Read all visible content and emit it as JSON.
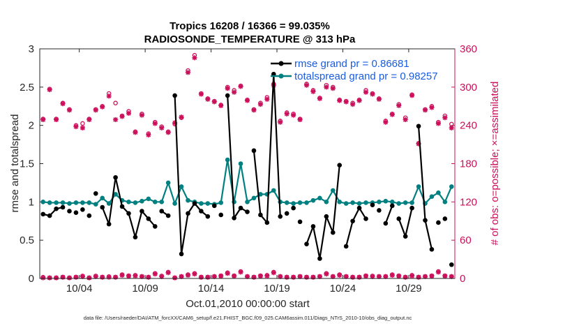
{
  "chart_data": {
    "type": "line",
    "title_line1": "Tropics 16208 / 16366 = 99.035%",
    "title_line2": "RADIOSONDE_TEMPERATURE @ 313 hPa",
    "ylabel_left": "rmse and totalspread",
    "ylabel_right": "# of obs: o=possible; ×=assimilated",
    "xlabel": "Oct.01,2010 00:00:00 start",
    "footer": "data file: /Users/raeder/DAI/ATM_forcXX/CAM6_setup/f.e21.FHIST_BGC.f09_025.CAM6assim.011/Diags_NTrS_2010-10/obs_diag_output.nc",
    "xlim": [
      1,
      32.5
    ],
    "ylim_left": [
      0,
      3
    ],
    "ylim_right": [
      0,
      360
    ],
    "x_ticks": [
      4,
      9,
      14,
      19,
      24,
      29
    ],
    "x_tick_labels": [
      "10/04",
      "10/09",
      "10/14",
      "10/19",
      "10/24",
      "10/29"
    ],
    "y_left_ticks": [
      0,
      0.5,
      1,
      1.5,
      2,
      2.5,
      3
    ],
    "y_left_tick_labels": [
      "0",
      "0.5",
      "1",
      "1.5",
      "2",
      "2.5",
      "3"
    ],
    "y_right_ticks": [
      0,
      60,
      120,
      180,
      240,
      300,
      360
    ],
    "y_right_tick_labels": [
      "0",
      "60",
      "120",
      "180",
      "240",
      "300",
      "360"
    ],
    "colors": {
      "rmse": "#000000",
      "totalspread": "#008080",
      "obs": "#cc0f5a",
      "legend_text": "#1a5ce0",
      "axis": "#262626"
    },
    "legend": {
      "location": "top-right",
      "entries": [
        "rmse grand pr = 0.86681",
        "totalspread grand pr = 0.98257"
      ]
    },
    "x": [
      1.25,
      1.75,
      2.25,
      2.75,
      3.25,
      3.75,
      4.25,
      4.75,
      5.25,
      5.75,
      6.25,
      6.75,
      7.25,
      7.75,
      8.25,
      8.75,
      9.25,
      9.75,
      10.25,
      10.75,
      11.25,
      11.75,
      12.25,
      12.75,
      13.25,
      13.75,
      14.25,
      14.75,
      15.25,
      15.75,
      16.25,
      16.75,
      17.25,
      17.75,
      18.25,
      18.75,
      19.25,
      19.75,
      20.25,
      20.75,
      21.25,
      21.75,
      22.25,
      22.75,
      23.25,
      23.75,
      24.25,
      24.75,
      25.25,
      25.75,
      26.25,
      26.75,
      27.25,
      27.75,
      28.25,
      28.75,
      29.25,
      29.75,
      30.25,
      30.75,
      31.25,
      31.75,
      32.25
    ],
    "series": [
      {
        "name": "rmse",
        "values": [
          0.84,
          0.82,
          0.91,
          0.93,
          0.88,
          0.86,
          0.9,
          0.82,
          1.11,
          0.93,
          0.71,
          1.32,
          0.94,
          0.85,
          0.54,
          0.88,
          0.78,
          0.68,
          0.88,
          0.82,
          2.39,
          0.32,
          0.85,
          0.98,
          0.88,
          0.81,
          0.95,
          0.83,
          2.39,
          0.79,
          0.92,
          0.87,
          1.67,
          0.83,
          0.73,
          2.67,
          0.81,
          0.85,
          0.92,
          0.74,
          0.45,
          0.68,
          0.26,
          0.81,
          0.6,
          1.48,
          0.42,
          0.75,
          0.92,
          0.78,
          0.96,
          0.89,
          0.72,
          0.95,
          0.78,
          0.55,
          0.92,
          1.99,
          0.76,
          0.38,
          0.73,
          0.78,
          0.18
        ],
        "gaps_after_index": [
          3,
          4,
          5,
          6,
          7,
          8,
          17,
          19,
          25,
          26,
          27,
          31,
          36,
          37,
          38,
          39,
          45,
          49,
          50,
          51,
          53,
          56,
          59,
          60,
          61
        ]
      },
      {
        "name": "totalspread",
        "values": [
          1.0,
          0.99,
          0.99,
          0.99,
          0.98,
          0.99,
          0.99,
          0.99,
          0.97,
          1.05,
          0.98,
          1.1,
          1.02,
          1.0,
          0.99,
          1.01,
          1.04,
          1.0,
          1.0,
          1.25,
          0.98,
          1.2,
          1.02,
          1.0,
          0.98,
          0.98,
          0.97,
          0.99,
          1.55,
          1.0,
          1.5,
          1.0,
          1.05,
          1.1,
          1.1,
          1.15,
          1.0,
          0.99,
          0.98,
          0.99,
          0.99,
          1.02,
          1.05,
          1.0,
          1.15,
          1.0,
          0.98,
          0.99,
          0.98,
          0.99,
          0.99,
          1.0,
          1.01,
          1.0,
          0.98,
          0.99,
          0.99,
          1.2,
          0.98,
          1.07,
          1.12,
          1.0,
          1.2
        ]
      },
      {
        "name": "obs_possible",
        "values": [
          250,
          297,
          250,
          275,
          265,
          240,
          243,
          250,
          265,
          270,
          290,
          275,
          255,
          262,
          230,
          258,
          227,
          245,
          238,
          230,
          242,
          252,
          326,
          350,
          290,
          282,
          278,
          272,
          300,
          295,
          302,
          280,
          265,
          275,
          284,
          305,
          247,
          260,
          258,
          250,
          305,
          295,
          283,
          303,
          300,
          280,
          278,
          275,
          280,
          295,
          290,
          282,
          247,
          258,
          273,
          252,
          288,
          212,
          265,
          270,
          245,
          255,
          242
        ]
      },
      {
        "name": "obs_assimilated",
        "values": [
          249,
          296,
          249,
          274,
          264,
          238,
          236,
          249,
          264,
          269,
          286,
          249,
          254,
          259,
          229,
          256,
          225,
          243,
          236,
          229,
          244,
          253,
          323,
          346,
          289,
          281,
          277,
          271,
          298,
          292,
          301,
          279,
          264,
          273,
          281,
          303,
          245,
          258,
          256,
          249,
          303,
          293,
          282,
          300,
          298,
          279,
          277,
          273,
          279,
          292,
          289,
          281,
          245,
          257,
          271,
          249,
          287,
          211,
          264,
          268,
          243,
          252,
          236
        ]
      }
    ],
    "obs_low_possible": [
      2,
      1,
      1,
      2,
      1,
      2,
      4,
      1,
      4,
      2,
      3,
      2,
      6,
      4,
      5,
      3,
      2,
      8,
      4,
      10,
      1,
      3,
      6,
      8,
      2,
      2,
      3,
      4,
      9,
      4,
      11,
      3,
      2,
      4,
      5,
      10,
      3,
      2,
      2,
      3,
      2,
      2,
      3,
      8,
      3,
      6,
      3,
      2,
      2,
      4,
      4,
      3,
      3,
      6,
      4,
      2,
      5,
      2,
      3,
      4,
      11,
      4,
      3
    ],
    "obs_low_assimilated": [
      1,
      1,
      1,
      2,
      1,
      2,
      3,
      1,
      3,
      2,
      2,
      2,
      5,
      4,
      4,
      3,
      2,
      7,
      3,
      9,
      1,
      3,
      5,
      7,
      2,
      2,
      3,
      4,
      8,
      4,
      10,
      3,
      2,
      4,
      4,
      9,
      3,
      2,
      2,
      3,
      2,
      2,
      3,
      7,
      3,
      5,
      3,
      2,
      2,
      4,
      3,
      3,
      3,
      5,
      4,
      2,
      4,
      2,
      3,
      4,
      10,
      4,
      3
    ]
  }
}
